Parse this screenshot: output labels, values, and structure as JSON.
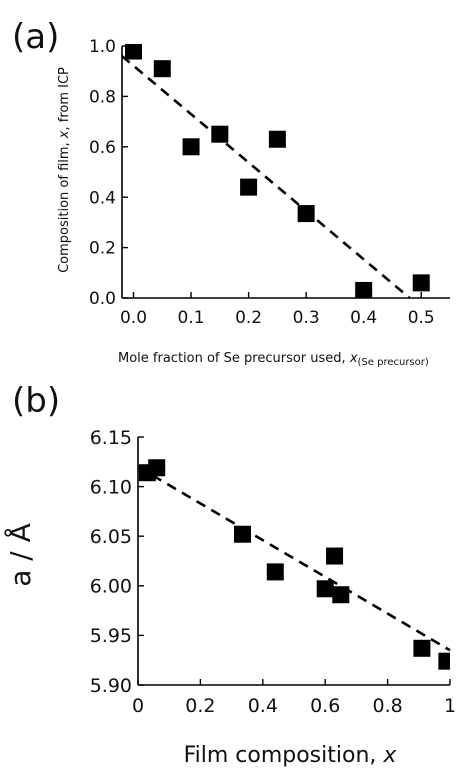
{
  "chart_data": [
    {
      "type": "scatter",
      "panel_label": "(a)",
      "xlabel": "Mole fraction of Se precursor used, ",
      "xlabel_var": "x",
      "xlabel_sub": "(Se precursor)",
      "ylabel_pre": "Composition of film, ",
      "ylabel_var": "x",
      "ylabel_post": ", from ICP",
      "xlim": [
        -0.02,
        0.55
      ],
      "ylim": [
        0.0,
        1.0
      ],
      "xticks": [
        "0.0",
        "0.1",
        "0.2",
        "0.3",
        "0.4",
        "0.5"
      ],
      "yticks": [
        "0.0",
        "0.2",
        "0.4",
        "0.6",
        "0.8",
        "1.0"
      ],
      "series": [
        {
          "points": [
            [
              0.0,
              0.98
            ],
            [
              0.05,
              0.91
            ],
            [
              0.1,
              0.6
            ],
            [
              0.15,
              0.65
            ],
            [
              0.2,
              0.44
            ],
            [
              0.25,
              0.63
            ],
            [
              0.3,
              0.335
            ],
            [
              0.4,
              0.03
            ],
            [
              0.5,
              0.06
            ]
          ]
        }
      ],
      "fit_line": [
        [
          -0.02,
          0.96
        ],
        [
          0.48,
          0.0
        ]
      ],
      "grid": false,
      "legend": "none"
    },
    {
      "type": "scatter",
      "panel_label": "(b)",
      "xlabel": "Film composition, ",
      "xlabel_var": "x",
      "ylabel": "a / Å",
      "xlim": [
        0.0,
        1.0
      ],
      "ylim": [
        5.9,
        6.15
      ],
      "xticks": [
        "0",
        "0.2",
        "0.4",
        "0.6",
        "0.8",
        "1"
      ],
      "yticks": [
        "5.90",
        "5.95",
        "6.00",
        "6.05",
        "6.10",
        "6.15"
      ],
      "series": [
        {
          "points": [
            [
              0.03,
              6.114
            ],
            [
              0.06,
              6.119
            ],
            [
              0.335,
              6.052
            ],
            [
              0.44,
              6.014
            ],
            [
              0.6,
              5.997
            ],
            [
              0.63,
              6.03
            ],
            [
              0.65,
              5.991
            ],
            [
              0.91,
              5.937
            ],
            [
              0.99,
              5.924
            ]
          ]
        }
      ],
      "fit_line": [
        [
          0.0,
          6.12
        ],
        [
          1.0,
          5.935
        ]
      ],
      "grid": false,
      "legend": "none"
    }
  ]
}
